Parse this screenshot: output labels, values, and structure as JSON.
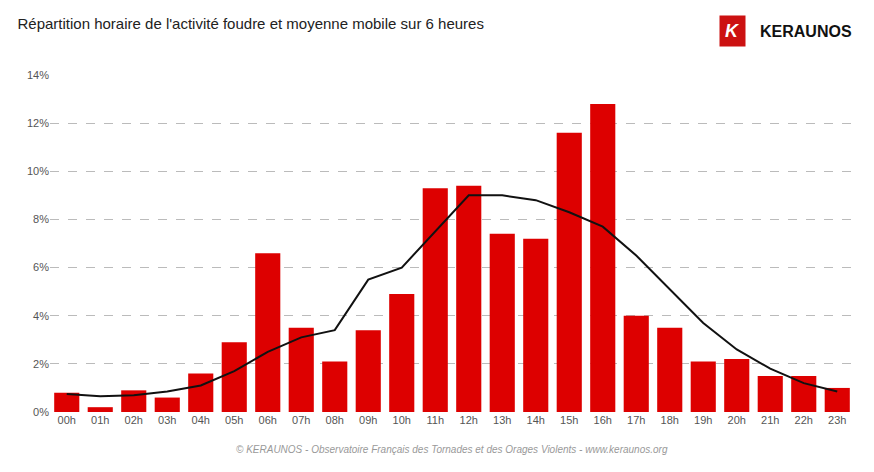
{
  "chart_data": {
    "type": "bar",
    "title": "Répartition horaire de l'activité foudre et moyenne mobile sur 6 heures",
    "categories": [
      "00h",
      "01h",
      "02h",
      "03h",
      "04h",
      "05h",
      "06h",
      "07h",
      "08h",
      "09h",
      "10h",
      "11h",
      "12h",
      "13h",
      "14h",
      "15h",
      "16h",
      "17h",
      "18h",
      "19h",
      "20h",
      "21h",
      "22h",
      "23h"
    ],
    "series": [
      {
        "type": "bar",
        "color": "#dd0000",
        "values": [
          0.8,
          0.2,
          0.9,
          0.6,
          1.6,
          2.9,
          6.6,
          3.5,
          2.1,
          3.4,
          4.9,
          9.3,
          9.4,
          7.4,
          7.2,
          11.6,
          12.8,
          4.0,
          3.5,
          2.1,
          2.2,
          1.5,
          1.5,
          1.0
        ]
      },
      {
        "type": "line",
        "color": "#111111",
        "values": [
          0.75,
          0.65,
          0.7,
          0.85,
          1.1,
          1.7,
          2.5,
          3.1,
          3.4,
          5.5,
          6.0,
          7.5,
          9.0,
          9.0,
          8.8,
          8.3,
          7.7,
          6.5,
          5.1,
          3.7,
          2.6,
          1.8,
          1.2,
          0.85
        ]
      }
    ],
    "ylim": [
      0,
      14
    ],
    "yticks": [
      {
        "value": 0,
        "label": "0%"
      },
      {
        "value": 2,
        "label": "2%"
      },
      {
        "value": 4,
        "label": "4%"
      },
      {
        "value": 6,
        "label": "6%"
      },
      {
        "value": 8,
        "label": "8%"
      },
      {
        "value": 10,
        "label": "10%"
      },
      {
        "value": 12,
        "label": "12%"
      },
      {
        "value": 14,
        "label": "14%"
      }
    ],
    "grid": true,
    "annotations": [
      {
        "text": "© KERAUNOS - Observatoire Français des Tornades et des Orages Violents - www.keraunos.org"
      },
      {
        "text": "K",
        "color": "#cc1111"
      },
      {
        "text": "KERAUNOS"
      }
    ]
  }
}
